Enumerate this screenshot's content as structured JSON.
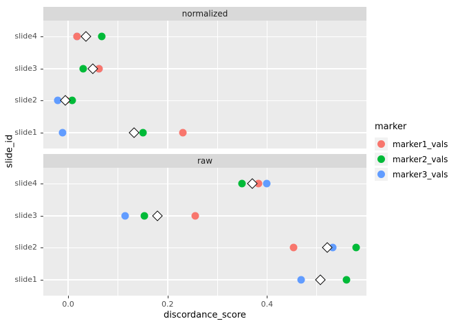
{
  "chart_data": {
    "type": "scatter",
    "title": "",
    "xlabel": "discordance_score",
    "ylabel": "slide_id",
    "x": {
      "min": -0.05,
      "max": 0.6,
      "ticks": [
        {
          "value": 0.0,
          "label": "0.0"
        },
        {
          "value": 0.2,
          "label": "0.2"
        },
        {
          "value": 0.4,
          "label": "0.4"
        }
      ],
      "minor": [
        0.1,
        0.3,
        0.5
      ]
    },
    "y_categories": [
      "slide4",
      "slide3",
      "slide2",
      "slide1"
    ],
    "facets": [
      {
        "label": "normalized",
        "points": [
          {
            "slide": "slide4",
            "series": "marker3_vals",
            "x": 0.018
          },
          {
            "slide": "slide4",
            "series": "marker1_vals",
            "x": 0.018
          },
          {
            "slide": "slide4",
            "series": "marker2_vals",
            "x": 0.068
          },
          {
            "slide": "slide3",
            "series": "marker3_vals",
            "x": 0.062
          },
          {
            "slide": "slide3",
            "series": "marker2_vals",
            "x": 0.03
          },
          {
            "slide": "slide3",
            "series": "marker1_vals",
            "x": 0.062
          },
          {
            "slide": "slide2",
            "series": "marker1_vals",
            "x": -0.004
          },
          {
            "slide": "slide2",
            "series": "marker3_vals",
            "x": -0.021
          },
          {
            "slide": "slide2",
            "series": "marker2_vals",
            "x": 0.008
          },
          {
            "slide": "slide1",
            "series": "marker3_vals",
            "x": -0.011
          },
          {
            "slide": "slide1",
            "series": "marker2_vals",
            "x": 0.151
          },
          {
            "slide": "slide1",
            "series": "marker1_vals",
            "x": 0.231
          }
        ],
        "means": [
          {
            "slide": "slide4",
            "x": 0.036
          },
          {
            "slide": "slide3",
            "x": 0.05
          },
          {
            "slide": "slide2",
            "x": -0.006
          },
          {
            "slide": "slide1",
            "x": 0.132
          }
        ]
      },
      {
        "label": "raw",
        "points": [
          {
            "slide": "slide4",
            "series": "marker2_vals",
            "x": 0.349
          },
          {
            "slide": "slide4",
            "series": "marker1_vals",
            "x": 0.383
          },
          {
            "slide": "slide4",
            "series": "marker3_vals",
            "x": 0.4
          },
          {
            "slide": "slide3",
            "series": "marker3_vals",
            "x": 0.114
          },
          {
            "slide": "slide3",
            "series": "marker2_vals",
            "x": 0.153
          },
          {
            "slide": "slide3",
            "series": "marker1_vals",
            "x": 0.256
          },
          {
            "slide": "slide2",
            "series": "marker1_vals",
            "x": 0.454
          },
          {
            "slide": "slide2",
            "series": "marker3_vals",
            "x": 0.532
          },
          {
            "slide": "slide2",
            "series": "marker2_vals",
            "x": 0.579
          },
          {
            "slide": "slide1",
            "series": "marker1_vals",
            "x": 0.508
          },
          {
            "slide": "slide1",
            "series": "marker3_vals",
            "x": 0.468
          },
          {
            "slide": "slide1",
            "series": "marker2_vals",
            "x": 0.56
          }
        ],
        "means": [
          {
            "slide": "slide4",
            "x": 0.37
          },
          {
            "slide": "slide3",
            "x": 0.18
          },
          {
            "slide": "slide2",
            "x": 0.521
          },
          {
            "slide": "slide1",
            "x": 0.508
          }
        ]
      }
    ],
    "legend": {
      "title": "marker",
      "entries": [
        {
          "series": "marker1_vals",
          "label": "marker1_vals",
          "color": "#F8766D"
        },
        {
          "series": "marker2_vals",
          "label": "marker2_vals",
          "color": "#00BA38"
        },
        {
          "series": "marker3_vals",
          "label": "marker3_vals",
          "color": "#619CFF"
        }
      ]
    },
    "colors": {
      "panel_bg": "#EBEBEB",
      "strip_bg": "#D9D9D9",
      "grid": "#FFFFFF",
      "legend_key_bg": "#F2F2F2",
      "tick_text": "#4D4D4D"
    }
  }
}
